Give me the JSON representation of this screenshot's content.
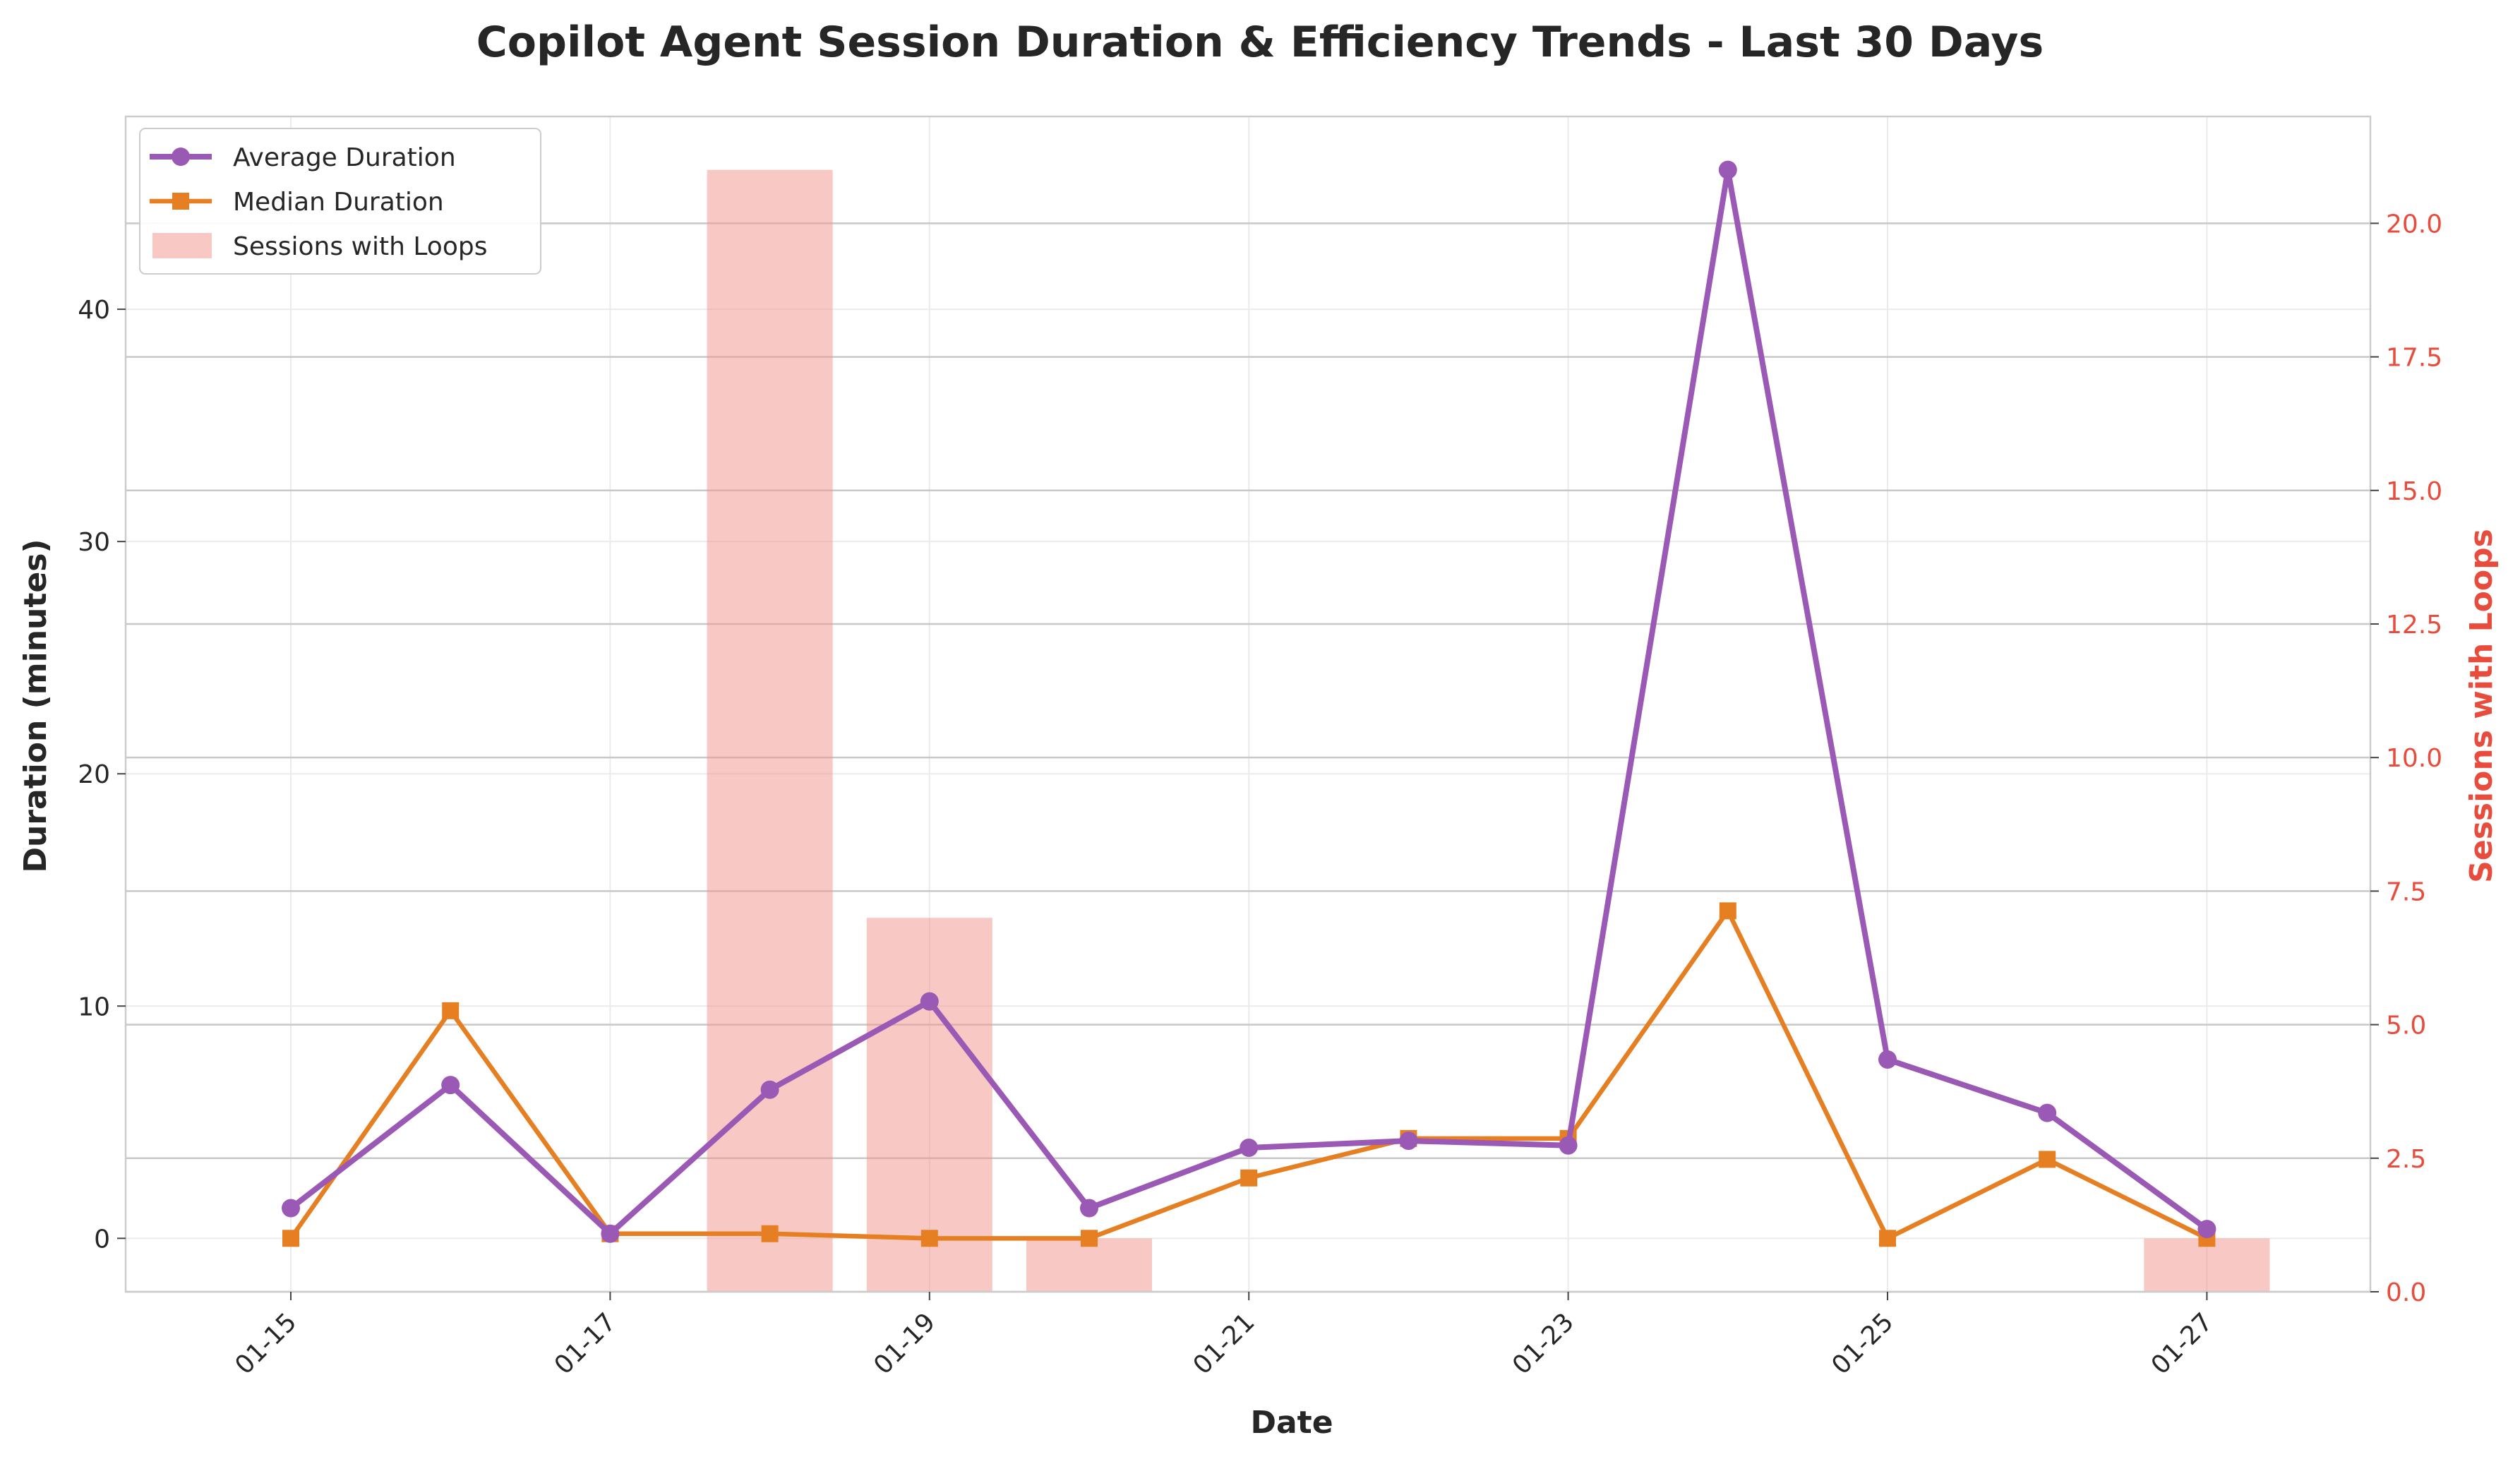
{
  "title": "Copilot Agent Session Duration & Efficiency Trends - Last 30 Days",
  "chart_data": {
    "type": "line",
    "title": "Copilot Agent Session Duration & Efficiency Trends - Last 30 Days",
    "xlabel": "Date",
    "ylabel": "Duration (minutes)",
    "y2label": "Sessions with Loops",
    "x": [
      "01-15",
      "01-16",
      "01-17",
      "01-18",
      "01-19",
      "01-20",
      "01-21",
      "01-22",
      "01-23",
      "01-24",
      "01-25",
      "01-26",
      "01-27"
    ],
    "x_tick_labels": [
      "01-15",
      "01-17",
      "01-19",
      "01-21",
      "01-23",
      "01-25",
      "01-27"
    ],
    "ylim": [
      -2.3,
      48.3
    ],
    "y_ticks": [
      0,
      10,
      20,
      30,
      40
    ],
    "y2lim": [
      0,
      22
    ],
    "y2_ticks": [
      "0.0",
      "2.5",
      "5.0",
      "7.5",
      "10.0",
      "12.5",
      "15.0",
      "17.5",
      "20.0"
    ],
    "series": [
      {
        "name": "Average Duration",
        "kind": "line",
        "marker": "circle",
        "axis": "left",
        "color": "#9b59b6",
        "values": [
          1.3,
          6.6,
          0.2,
          6.4,
          10.2,
          1.3,
          3.9,
          4.2,
          4.0,
          46.0,
          7.7,
          5.4,
          0.4
        ]
      },
      {
        "name": "Median Duration",
        "kind": "line",
        "marker": "square",
        "axis": "left",
        "color": "#e67e22",
        "values": [
          0.0,
          9.8,
          0.2,
          0.2,
          0.0,
          0.0,
          2.6,
          4.3,
          4.3,
          14.1,
          0.0,
          3.4,
          0.0
        ]
      },
      {
        "name": "Sessions with Loops",
        "kind": "bar",
        "axis": "right",
        "color": "#f1948a",
        "values": [
          0,
          0,
          0,
          21,
          7,
          1,
          0,
          0,
          0,
          0,
          0,
          0,
          1
        ]
      }
    ],
    "grid": true,
    "legend_position": "top-left"
  }
}
